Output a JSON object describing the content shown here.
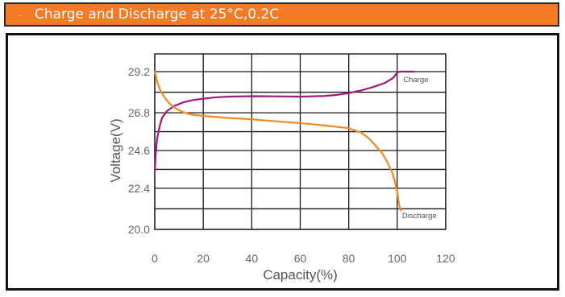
{
  "header": {
    "bullet": "·",
    "title": "Charge and Discharge at 25°C,0.2C"
  },
  "colors": {
    "header_bg": "#f47a26",
    "charge": "#a0197f",
    "discharge": "#f08a22",
    "grid": "#1a1a1a"
  },
  "chart_data": {
    "type": "line",
    "title": "",
    "xlabel": "Capacity(%)",
    "ylabel": "Voltage(V)",
    "xlim": [
      0,
      120
    ],
    "ylim": [
      19.0,
      30.0
    ],
    "xticks": [
      0,
      20,
      40,
      60,
      80,
      100,
      120
    ],
    "xtick_labels": [
      "0",
      "20",
      "40",
      "60",
      "80",
      "100",
      "120"
    ],
    "yticks": [
      20.0,
      22.4,
      24.6,
      26.8,
      29.2
    ],
    "ytick_labels": [
      "20.0",
      "22.4",
      "24.6",
      "26.8",
      "29.2"
    ],
    "grid": true,
    "series": [
      {
        "name": "Charge",
        "x": [
          0,
          0.5,
          1,
          2,
          3,
          5,
          8,
          12,
          16,
          20,
          25,
          30,
          40,
          50,
          60,
          70,
          75,
          80,
          85,
          90,
          95,
          98,
          99,
          100,
          101,
          107
        ],
        "y": [
          23.4,
          24.6,
          25.3,
          26.0,
          26.5,
          26.9,
          27.2,
          27.42,
          27.55,
          27.62,
          27.7,
          27.74,
          27.77,
          27.76,
          27.74,
          27.78,
          27.84,
          27.95,
          28.1,
          28.3,
          28.55,
          28.8,
          28.95,
          29.15,
          29.2,
          29.2
        ]
      },
      {
        "name": "Discharge",
        "x": [
          0,
          0.5,
          1,
          2,
          4,
          6,
          8,
          10,
          12,
          15,
          20,
          30,
          40,
          50,
          60,
          70,
          80,
          85,
          88,
          91,
          94,
          96,
          98,
          99,
          100,
          100.5,
          101,
          101.5
        ],
        "y": [
          29.2,
          28.9,
          28.6,
          28.2,
          27.7,
          27.35,
          27.12,
          26.95,
          26.82,
          26.7,
          26.62,
          26.5,
          26.42,
          26.3,
          26.2,
          26.06,
          25.9,
          25.65,
          25.35,
          24.9,
          24.4,
          23.9,
          23.3,
          22.8,
          22.2,
          21.7,
          21.3,
          21.1
        ]
      }
    ]
  }
}
